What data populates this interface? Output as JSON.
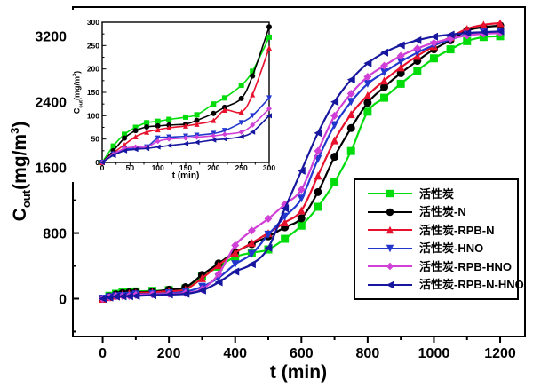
{
  "figure": {
    "background": "#ffffff"
  },
  "axis_titles": {
    "main_y": {
      "base": "C",
      "sub": "out",
      "mid": "(mg/m",
      "sup": "3",
      "end": ")"
    },
    "main_x": "t (min)",
    "inset_y": {
      "base": "C",
      "sub": "out",
      "mid": "(mg/m",
      "sup": "3",
      "end": ")"
    },
    "inset_x": "t (min)"
  },
  "legend": {
    "items": [
      {
        "label": "活性炭",
        "color": "#00dc0a",
        "marker": "square"
      },
      {
        "label": "活性炭-N",
        "color": "#000000",
        "marker": "circle"
      },
      {
        "label": "活性炭-RPB-N",
        "color": "#e8112d",
        "marker": "triangle-up"
      },
      {
        "label": "活性炭-HNO",
        "color": "#2337cf",
        "marker": "triangle-down"
      },
      {
        "label": "活性炭-RPB-HNO",
        "color": "#d040d6",
        "marker": "diamond"
      },
      {
        "label": "活性炭-RPB-N-HNO",
        "color": "#16169e",
        "marker": "triangle-left"
      }
    ]
  },
  "chart_data": [
    {
      "id": "main",
      "type": "line",
      "title": "",
      "xlabel": "t (min)",
      "ylabel": "Cout (mg/m3)",
      "xlim": [
        -90,
        1275
      ],
      "ylim": [
        -460,
        3555
      ],
      "xticks": [
        0,
        200,
        400,
        600,
        800,
        1000,
        1200
      ],
      "yticks": [
        0,
        800,
        1600,
        2400,
        3200
      ],
      "xminor_step": 100,
      "yminor_step": 400,
      "grid": false,
      "legend_position": "inside-right",
      "x": [
        0,
        20,
        40,
        60,
        80,
        100,
        150,
        200,
        250,
        300,
        350,
        400,
        450,
        500,
        550,
        600,
        650,
        700,
        750,
        800,
        850,
        900,
        950,
        1000,
        1050,
        1100,
        1150,
        1200
      ],
      "series": [
        {
          "name": "活性炭",
          "color": "#00dc0a",
          "marker": "square",
          "values": [
            0,
            35,
            60,
            75,
            85,
            88,
            95,
            105,
            125,
            270,
            390,
            510,
            560,
            600,
            730,
            890,
            1120,
            1420,
            1800,
            2280,
            2450,
            2620,
            2780,
            2930,
            3040,
            3140,
            3190,
            3200
          ]
        },
        {
          "name": "活性炭-N",
          "color": "#000000",
          "marker": "circle",
          "values": [
            0,
            25,
            52,
            68,
            76,
            80,
            85,
            110,
            140,
            290,
            430,
            570,
            665,
            760,
            870,
            980,
            1300,
            1730,
            2080,
            2390,
            2580,
            2750,
            2900,
            3040,
            3150,
            3270,
            3310,
            3330
          ]
        },
        {
          "name": "活性炭-RPB-N",
          "color": "#e8112d",
          "marker": "triangle-up",
          "values": [
            0,
            20,
            38,
            55,
            65,
            70,
            78,
            92,
            112,
            250,
            410,
            560,
            680,
            800,
            930,
            1075,
            1500,
            1930,
            2250,
            2480,
            2660,
            2820,
            2960,
            3080,
            3190,
            3290,
            3340,
            3360
          ]
        },
        {
          "name": "活性炭-HNO",
          "color": "#2337cf",
          "marker": "triangle-down",
          "values": [
            0,
            18,
            28,
            32,
            35,
            52,
            57,
            65,
            85,
            145,
            255,
            420,
            545,
            780,
            1000,
            1220,
            1700,
            2115,
            2400,
            2620,
            2760,
            2890,
            3000,
            3090,
            3160,
            3220,
            3245,
            3255
          ]
        },
        {
          "name": "活性炭-RPB-HNO",
          "color": "#d040d6",
          "marker": "diamond",
          "values": [
            0,
            17,
            30,
            33,
            34,
            45,
            52,
            58,
            68,
            115,
            300,
            650,
            830,
            975,
            1150,
            1330,
            1800,
            2230,
            2500,
            2705,
            2840,
            2960,
            3050,
            3120,
            3170,
            3210,
            3230,
            3240
          ]
        },
        {
          "name": "活性炭-RPB-N-HNO",
          "color": "#16169e",
          "marker": "triangle-left",
          "values": [
            0,
            15,
            25,
            28,
            30,
            33,
            42,
            50,
            58,
            100,
            200,
            330,
            420,
            620,
            1100,
            1560,
            2020,
            2400,
            2670,
            2870,
            3000,
            3090,
            3150,
            3195,
            3220,
            3240,
            3250,
            3260
          ]
        }
      ]
    },
    {
      "id": "inset",
      "type": "line",
      "title": "",
      "xlabel": "t (min)",
      "ylabel": "Cout (mg/m3)",
      "xlim": [
        0,
        300
      ],
      "ylim": [
        0,
        300
      ],
      "xticks": [
        0,
        50,
        100,
        150,
        200,
        250,
        300
      ],
      "yticks": [
        0,
        50,
        100,
        150,
        200,
        250,
        300
      ],
      "xminor_step": 25,
      "yminor_step": 25,
      "grid": false,
      "legend_position": "none",
      "x": [
        0,
        20,
        40,
        60,
        80,
        100,
        120,
        150,
        170,
        200,
        220,
        250,
        270,
        300
      ],
      "series": [
        {
          "name": "活性炭",
          "color": "#00dc0a",
          "marker": "square",
          "values": [
            0,
            35,
            60,
            75,
            85,
            88,
            92,
            97,
            102,
            125,
            138,
            165,
            195,
            268
          ]
        },
        {
          "name": "活性炭-N",
          "color": "#000000",
          "marker": "circle",
          "values": [
            0,
            25,
            52,
            68,
            76,
            78,
            80,
            82,
            90,
            105,
            118,
            137,
            185,
            290
          ]
        },
        {
          "name": "活性炭-RPB-N",
          "color": "#e8112d",
          "marker": "triangle-up",
          "values": [
            0,
            20,
            38,
            55,
            65,
            70,
            74,
            78,
            82,
            90,
            112,
            108,
            145,
            245
          ]
        },
        {
          "name": "活性炭-HNO",
          "color": "#2337cf",
          "marker": "triangle-down",
          "values": [
            0,
            18,
            28,
            30,
            33,
            52,
            54,
            56,
            58,
            62,
            68,
            85,
            100,
            138
          ]
        },
        {
          "name": "活性炭-RPB-HNO",
          "color": "#d040d6",
          "marker": "diamond",
          "values": [
            0,
            17,
            30,
            33,
            33,
            45,
            50,
            52,
            54,
            57,
            60,
            65,
            80,
            115
          ]
        },
        {
          "name": "活性炭-RPB-N-HNO",
          "color": "#16169e",
          "marker": "triangle-left",
          "values": [
            0,
            15,
            25,
            28,
            30,
            33,
            36,
            40,
            43,
            48,
            50,
            55,
            65,
            100
          ]
        }
      ]
    }
  ]
}
